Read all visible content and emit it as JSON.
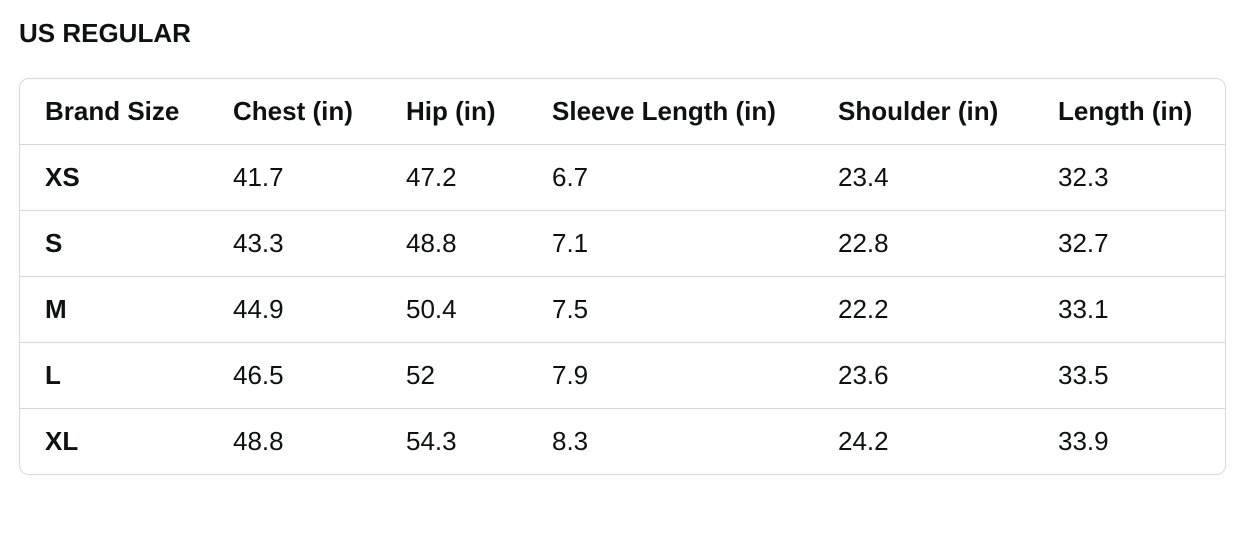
{
  "header": {
    "title": "US REGULAR"
  },
  "table": {
    "columns": [
      "Brand Size",
      "Chest (in)",
      "Hip (in)",
      "Sleeve Length (in)",
      "Shoulder (in)",
      "Length (in)"
    ],
    "rows": [
      [
        "XS",
        "41.7",
        "47.2",
        "6.7",
        "23.4",
        "32.3"
      ],
      [
        "S",
        "43.3",
        "48.8",
        "7.1",
        "22.8",
        "32.7"
      ],
      [
        "M",
        "44.9",
        "50.4",
        "7.5",
        "22.2",
        "33.1"
      ],
      [
        "L",
        "46.5",
        "52",
        "7.9",
        "23.6",
        "33.5"
      ],
      [
        "XL",
        "48.8",
        "54.3",
        "8.3",
        "24.2",
        "33.9"
      ]
    ]
  }
}
